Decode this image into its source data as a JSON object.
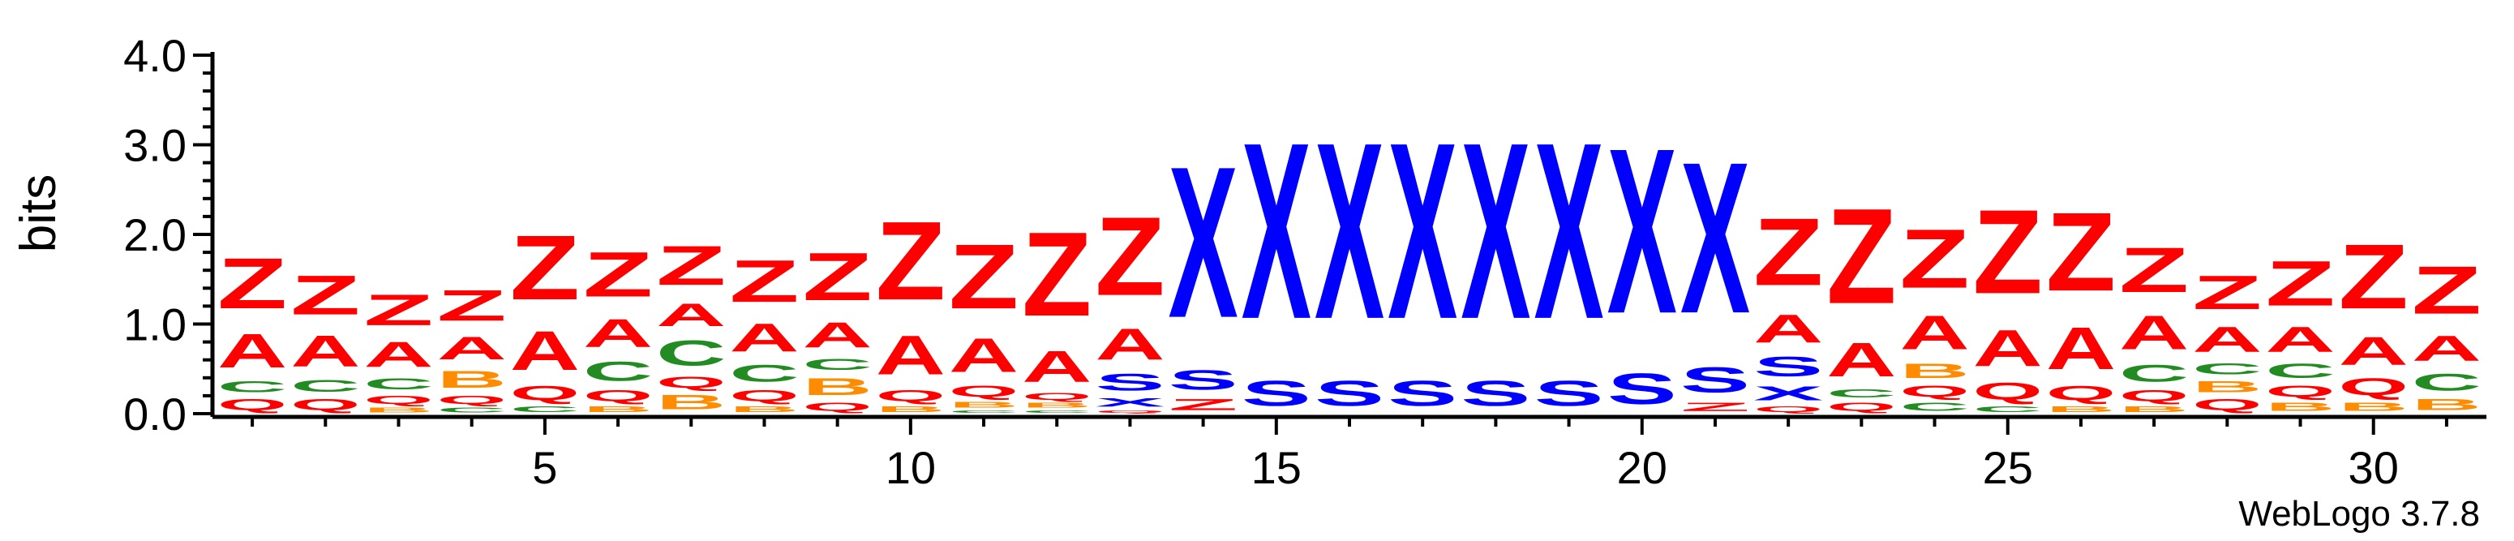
{
  "chart_data": {
    "type": "sequence-logo",
    "ylabel": "bits",
    "ylim": [
      0,
      4.0
    ],
    "y_ticks": [
      "0.0",
      "1.0",
      "2.0",
      "3.0",
      "4.0"
    ],
    "x_tick_labels": [
      "5",
      "10",
      "15",
      "20",
      "25",
      "30"
    ],
    "x_tick_positions": [
      5,
      10,
      15,
      20,
      25,
      30
    ],
    "positions": [
      1,
      31
    ],
    "colors": {
      "Z": "#ff0000",
      "A": "#ff0000",
      "X": "#0000ff",
      "S": "#0000ff",
      "C": "#228b22",
      "B": "#ff8c00",
      "Q": "#ff0000"
    },
    "stacks": [
      [
        [
          "Q",
          0.2
        ],
        [
          "C",
          0.2
        ],
        [
          "A",
          0.6
        ],
        [
          "Z",
          0.9
        ]
      ],
      [
        [
          "Q",
          0.2
        ],
        [
          "C",
          0.22
        ],
        [
          "A",
          0.55
        ],
        [
          "Z",
          0.7
        ]
      ],
      [
        [
          "B",
          0.08
        ],
        [
          "Q",
          0.15
        ],
        [
          "C",
          0.2
        ],
        [
          "A",
          0.45
        ],
        [
          "Z",
          0.55
        ]
      ],
      [
        [
          "C",
          0.08
        ],
        [
          "Q",
          0.15
        ],
        [
          "B",
          0.3
        ],
        [
          "A",
          0.4
        ],
        [
          "Z",
          0.55
        ]
      ],
      [
        [
          "C",
          0.1
        ],
        [
          "Q",
          0.25
        ],
        [
          "A",
          0.7
        ],
        [
          "Z",
          1.15
        ]
      ],
      [
        [
          "B",
          0.1
        ],
        [
          "Q",
          0.2
        ],
        [
          "C",
          0.35
        ],
        [
          "A",
          0.5
        ],
        [
          "Z",
          0.8
        ]
      ],
      [
        [
          "B",
          0.25
        ],
        [
          "Q",
          0.2
        ],
        [
          "C",
          0.45
        ],
        [
          "A",
          0.4
        ],
        [
          "Z",
          0.7
        ]
      ],
      [
        [
          "B",
          0.1
        ],
        [
          "Q",
          0.2
        ],
        [
          "C",
          0.3
        ],
        [
          "A",
          0.5
        ],
        [
          "Z",
          0.75
        ]
      ],
      [
        [
          "Q",
          0.15
        ],
        [
          "B",
          0.3
        ],
        [
          "C",
          0.2
        ],
        [
          "A",
          0.45
        ],
        [
          "Z",
          0.85
        ]
      ],
      [
        [
          "B",
          0.1
        ],
        [
          "Q",
          0.2
        ],
        [
          "A",
          0.7
        ],
        [
          "Z",
          1.4
        ]
      ],
      [
        [
          "C",
          0.05
        ],
        [
          "B",
          0.1
        ],
        [
          "Q",
          0.2
        ],
        [
          "A",
          0.6
        ],
        [
          "Z",
          1.15
        ]
      ],
      [
        [
          "C",
          0.05
        ],
        [
          "B",
          0.08
        ],
        [
          "Q",
          0.12
        ],
        [
          "A",
          0.55
        ],
        [
          "Z",
          1.5
        ]
      ],
      [
        [
          "Q",
          0.05
        ],
        [
          "X",
          0.15
        ],
        [
          "S",
          0.3
        ],
        [
          "A",
          0.55
        ],
        [
          "Z",
          1.4
        ]
      ],
      [
        [
          "Z",
          0.2
        ],
        [
          "S",
          0.35
        ],
        [
          "X",
          2.7
        ]
      ],
      [
        [
          "S",
          0.45
        ],
        [
          "X",
          3.15
        ]
      ],
      [
        [
          "S",
          0.45
        ],
        [
          "X",
          3.15
        ]
      ],
      [
        [
          "S",
          0.45
        ],
        [
          "X",
          3.15
        ]
      ],
      [
        [
          "S",
          0.45
        ],
        [
          "X",
          3.15
        ]
      ],
      [
        [
          "S",
          0.45
        ],
        [
          "X",
          3.15
        ]
      ],
      [
        [
          "S",
          0.55
        ],
        [
          "X",
          2.95
        ]
      ],
      [
        [
          "Z",
          0.15
        ],
        [
          "S",
          0.45
        ],
        [
          "X",
          2.7
        ]
      ],
      [
        [
          "Q",
          0.1
        ],
        [
          "X",
          0.25
        ],
        [
          "S",
          0.35
        ],
        [
          "A",
          0.5
        ],
        [
          "Z",
          1.2
        ]
      ],
      [
        [
          "Q",
          0.15
        ],
        [
          "C",
          0.15
        ],
        [
          "A",
          0.6
        ],
        [
          "Z",
          1.7
        ]
      ],
      [
        [
          "C",
          0.15
        ],
        [
          "Q",
          0.2
        ],
        [
          "B",
          0.25
        ],
        [
          "A",
          0.6
        ],
        [
          "Z",
          1.05
        ]
      ],
      [
        [
          "C",
          0.1
        ],
        [
          "Q",
          0.3
        ],
        [
          "A",
          0.65
        ],
        [
          "Z",
          1.5
        ]
      ],
      [
        [
          "B",
          0.1
        ],
        [
          "Q",
          0.25
        ],
        [
          "A",
          0.75
        ],
        [
          "Z",
          1.4
        ]
      ],
      [
        [
          "B",
          0.1
        ],
        [
          "Q",
          0.2
        ],
        [
          "C",
          0.3
        ],
        [
          "A",
          0.6
        ],
        [
          "Z",
          0.8
        ]
      ],
      [
        [
          "Q",
          0.2
        ],
        [
          "B",
          0.2
        ],
        [
          "C",
          0.2
        ],
        [
          "A",
          0.45
        ],
        [
          "Z",
          0.6
        ]
      ],
      [
        [
          "B",
          0.15
        ],
        [
          "Q",
          0.2
        ],
        [
          "C",
          0.25
        ],
        [
          "A",
          0.45
        ],
        [
          "Z",
          0.8
        ]
      ],
      [
        [
          "B",
          0.15
        ],
        [
          "Q",
          0.3
        ],
        [
          "A",
          0.5
        ],
        [
          "Z",
          1.15
        ]
      ],
      [
        [
          "B",
          0.2
        ],
        [
          "C",
          0.3
        ],
        [
          "A",
          0.45
        ],
        [
          "Z",
          0.85
        ]
      ]
    ],
    "credit": "WebLogo 3.7.8"
  }
}
